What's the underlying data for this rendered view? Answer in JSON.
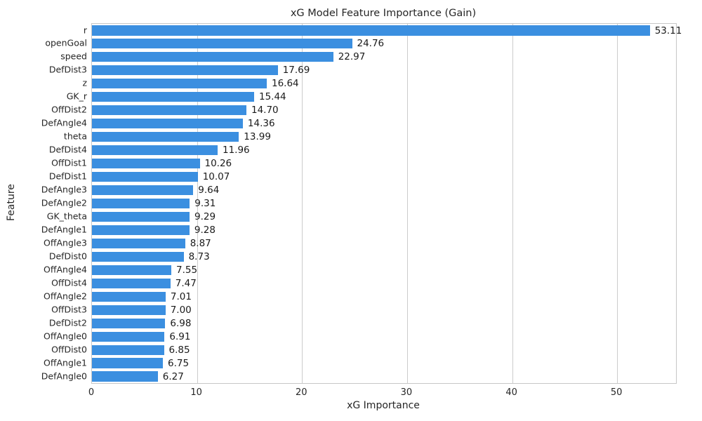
{
  "chart_data": {
    "type": "bar",
    "orientation": "horizontal",
    "title": "xG Model Feature Importance (Gain)",
    "xlabel": "xG Importance",
    "ylabel": "Feature",
    "categories": [
      "r",
      "openGoal",
      "speed",
      "DefDist3",
      "z",
      "GK_r",
      "OffDist2",
      "DefAngle4",
      "theta",
      "DefDist4",
      "OffDist1",
      "DefDist1",
      "DefAngle3",
      "DefAngle2",
      "GK_theta",
      "DefAngle1",
      "OffAngle3",
      "DefDist0",
      "OffAngle4",
      "OffDist4",
      "OffAngle2",
      "OffDist3",
      "DefDist2",
      "OffAngle0",
      "OffDist0",
      "OffAngle1",
      "DefAngle0"
    ],
    "values": [
      53.11,
      24.76,
      22.97,
      17.69,
      16.64,
      15.44,
      14.7,
      14.36,
      13.99,
      11.96,
      10.26,
      10.07,
      9.64,
      9.31,
      9.29,
      9.28,
      8.87,
      8.73,
      7.55,
      7.47,
      7.01,
      7.0,
      6.98,
      6.91,
      6.85,
      6.75,
      6.27
    ],
    "value_labels": [
      "53.11",
      "24.76",
      "22.97",
      "17.69",
      "16.64",
      "15.44",
      "14.70",
      "14.36",
      "13.99",
      "11.96",
      "10.26",
      "10.07",
      "9.64",
      "9.31",
      "9.29",
      "9.28",
      "8.87",
      "8.73",
      "7.55",
      "7.47",
      "7.01",
      "7.00",
      "6.98",
      "6.91",
      "6.85",
      "6.75",
      "6.27"
    ],
    "xlim": [
      0,
      55.6
    ],
    "xticks": [
      0,
      10,
      20,
      30,
      40,
      50
    ],
    "grid": "vertical-only",
    "legend": "none",
    "bar_color": "#3b8fe0",
    "grid_color": "#cccccc",
    "spine_color": "#c7c7c7",
    "text_color": "#262626",
    "background_color": "#ffffff"
  }
}
